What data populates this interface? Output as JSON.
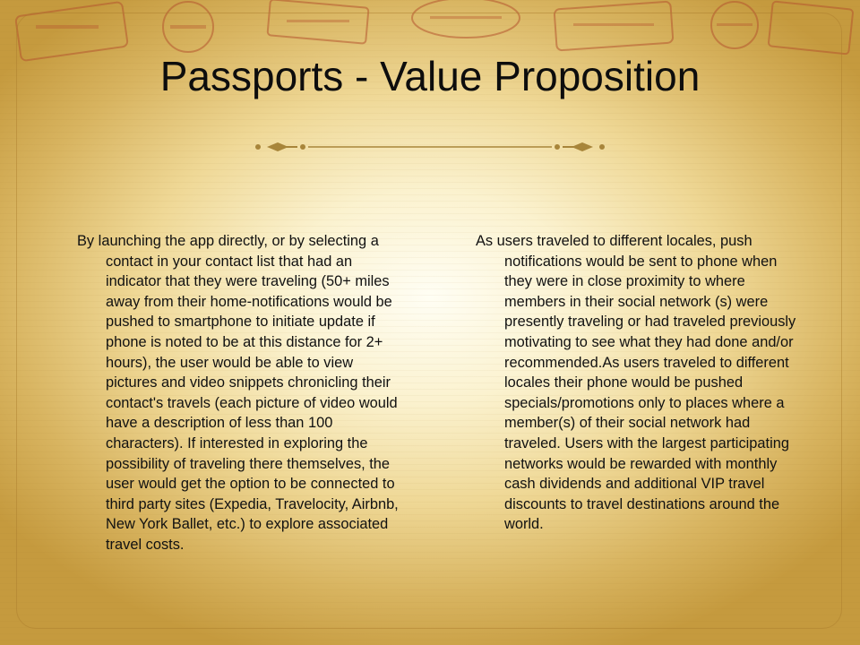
{
  "slide": {
    "title": "Passports - Value Proposition",
    "left_text": "By launching the app directly, or by selecting a contact in your contact list that had an indicator that they were traveling (50+ miles away from their home-notifications would be pushed to smartphone to initiate update if phone is noted to be at this distance for 2+ hours), the user would be able to view pictures and video snippets chronicling their contact's travels (each picture of video would have a description of less than 100 characters). If interested in exploring the possibility of traveling there themselves, the user would get the option to be connected to third party sites (Expedia, Travelocity, Airbnb, New York Ballet, etc.) to explore associated travel costs.",
    "right_text": "As users traveled to different locales, push notifications would be sent to phone when they were in close proximity to where members in their social network (s) were presently traveling or had traveled previously motivating to see what they had done and/or recommended.As users traveled to different locales their phone would be pushed specials/promotions only to places where a member(s) of their social network had traveled. Users with the largest participating networks would be rewarded with monthly cash dividends and additional VIP travel discounts to travel destinations around the world."
  },
  "colors": {
    "accent": "#a8853a",
    "text": "#111111"
  }
}
